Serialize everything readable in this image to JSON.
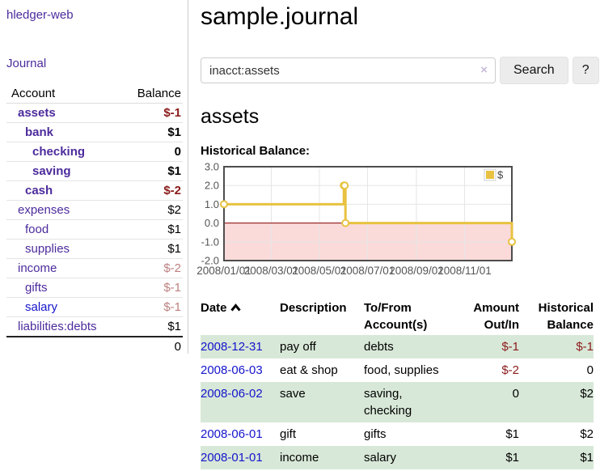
{
  "sidebar": {
    "brand": "hledger-web",
    "journal_link": "Journal",
    "accounts_table": {
      "headers": {
        "account": "Account",
        "balance": "Balance"
      },
      "accounts": [
        {
          "name": "assets",
          "depth": 1,
          "matched": true,
          "balance": "$-1",
          "balance_style": "negative"
        },
        {
          "name": "bank",
          "depth": 2,
          "matched": true,
          "balance": "$1",
          "balance_style": "normal"
        },
        {
          "name": "checking",
          "depth": 3,
          "matched": true,
          "balance": "0",
          "balance_style": "normal"
        },
        {
          "name": "saving",
          "depth": 3,
          "matched": true,
          "balance": "$1",
          "balance_style": "normal"
        },
        {
          "name": "cash",
          "depth": 2,
          "matched": true,
          "balance": "$-2",
          "balance_style": "negative"
        },
        {
          "name": "expenses",
          "depth": 1,
          "matched": false,
          "balance": "$2",
          "balance_style": "normal"
        },
        {
          "name": "food",
          "depth": 2,
          "matched": false,
          "balance": "$1",
          "balance_style": "normal"
        },
        {
          "name": "supplies",
          "depth": 2,
          "matched": false,
          "balance": "$1",
          "balance_style": "normal"
        },
        {
          "name": "income",
          "depth": 1,
          "matched": false,
          "balance": "$-2",
          "balance_style": "muted-negative"
        },
        {
          "name": "gifts",
          "depth": 2,
          "matched": false,
          "balance": "$-1",
          "balance_style": "muted-negative"
        },
        {
          "name": "salary",
          "depth": 2,
          "matched": false,
          "link_style": "unvisited",
          "balance": "$-1",
          "balance_style": "muted-negative"
        },
        {
          "name": "liabilities:debts",
          "depth": 1,
          "matched": false,
          "balance": "$1",
          "balance_style": "normal"
        }
      ],
      "total": "0"
    }
  },
  "header": {
    "title": "sample.journal"
  },
  "search": {
    "query": "inacct:assets",
    "clear_icon": "×",
    "button_label": "Search",
    "help_label": "?"
  },
  "account_page": {
    "heading": "assets",
    "chart_label": "Historical Balance:"
  },
  "chart_data": {
    "type": "line",
    "title": "Historical Balance",
    "step": true,
    "series": [
      {
        "name": "$",
        "color": "#e8c240",
        "points": [
          [
            "2008-01-01",
            1
          ],
          [
            "2008-06-01",
            2
          ],
          [
            "2008-06-02",
            2
          ],
          [
            "2008-06-03",
            0
          ],
          [
            "2008-12-31",
            -1
          ]
        ]
      }
    ],
    "x_range": [
      "2008-01-01",
      "2008-12-31"
    ],
    "x_ticks": [
      "2008/01/01",
      "2008/03/01",
      "2008/05/01",
      "2008/07/01",
      "2008/09/01",
      "2008/11/01"
    ],
    "y_ticks": [
      "3.0",
      "2.0",
      "1.0",
      "0.0",
      "-1.0",
      "-2.0"
    ],
    "ylim": [
      -2,
      3
    ],
    "grid": true,
    "legend": "$",
    "legend_position": "top-right",
    "zero_line_color": "#8b0000",
    "negative_fill": "#fbdada",
    "border_color": "#4d4d4d",
    "grid_color": "#e6e6e6",
    "tick_color": "#545454"
  },
  "register": {
    "headers": {
      "date": "Date",
      "sort_icon": "chevron-up",
      "description": "Description",
      "to_from": "To/From\nAccount(s)",
      "amount": "Amount\nOut/In",
      "historical": "Historical\nBalance"
    },
    "rows": [
      {
        "date": "2008-12-31",
        "description": "pay off",
        "to_from": "debts",
        "amount": "$-1",
        "amount_style": "negative",
        "historical": "$-1",
        "historical_style": "negative",
        "highlight": true
      },
      {
        "date": "2008-06-03",
        "description": "eat & shop",
        "to_from": "food, supplies",
        "amount": "$-2",
        "amount_style": "negative",
        "historical": "0",
        "historical_style": "normal",
        "highlight": false
      },
      {
        "date": "2008-06-02",
        "description": "save",
        "to_from": "saving,\nchecking",
        "amount": "0",
        "amount_style": "normal",
        "historical": "$2",
        "historical_style": "normal",
        "highlight": true
      },
      {
        "date": "2008-06-01",
        "description": "gift",
        "to_from": "gifts",
        "amount": "$1",
        "amount_style": "normal",
        "historical": "$2",
        "historical_style": "normal",
        "highlight": false
      },
      {
        "date": "2008-01-01",
        "description": "income",
        "to_from": "salary",
        "amount": "$1",
        "amount_style": "normal",
        "historical": "$1",
        "historical_style": "normal",
        "highlight": true
      }
    ]
  },
  "colors": {
    "link_purple": "#4c2b9c",
    "link_blue": "#1414cc",
    "negative": "#8b1a1a",
    "muted_negative": "#bc7f7f",
    "row_highlight": "#d8e8d8",
    "series_gold": "#e8c240"
  }
}
